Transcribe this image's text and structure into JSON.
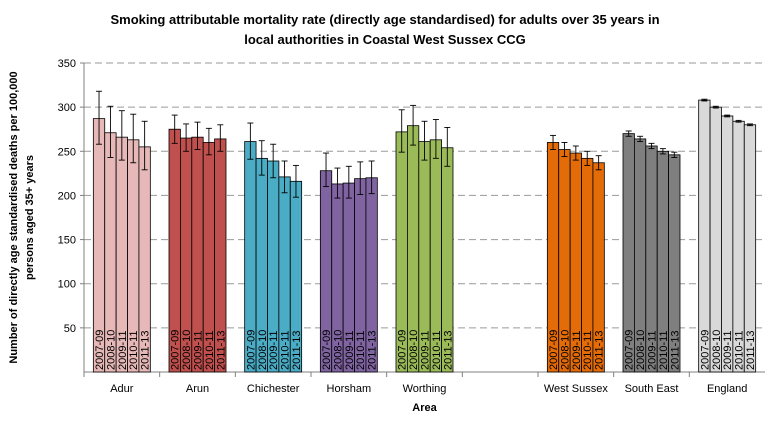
{
  "chart_data": {
    "type": "bar",
    "title": "Smoking attributable mortality rate (directly age standardised) for adults over 35 years in local authorities in Coastal West Sussex CCG",
    "title_lines": [
      "Smoking attributable mortality rate (directly age standardised) for adults over 35 years in",
      "local authorities in Coastal West Sussex CCG"
    ],
    "xlabel": "Area",
    "ylabel_lines": [
      "Number of directly age standardised deaths per 100,000",
      "persons aged 35+ years"
    ],
    "ylim": [
      0,
      350
    ],
    "yticks": [
      50,
      100,
      150,
      200,
      250,
      300,
      350
    ],
    "grid": true,
    "periods": [
      "2007-09",
      "2008-10",
      "2009-11",
      "2010-11",
      "2011-13"
    ],
    "groups": [
      {
        "name": "Adur",
        "color": "#e6b9b8",
        "values": [
          287,
          271,
          266,
          263,
          255
        ],
        "lower": [
          258,
          243,
          240,
          237,
          229
        ],
        "upper": [
          318,
          301,
          296,
          292,
          284
        ]
      },
      {
        "name": "Arun",
        "color": "#c0504d",
        "values": [
          275,
          265,
          266,
          260,
          264
        ],
        "lower": [
          259,
          250,
          252,
          246,
          250
        ],
        "upper": [
          291,
          281,
          283,
          276,
          280
        ]
      },
      {
        "name": "Chichester",
        "color": "#4bacc6",
        "values": [
          261,
          242,
          239,
          221,
          216
        ],
        "lower": [
          241,
          223,
          220,
          203,
          198
        ],
        "upper": [
          282,
          262,
          258,
          239,
          234
        ]
      },
      {
        "name": "Horsham",
        "color": "#8064a2",
        "values": [
          228,
          213,
          214,
          219,
          220
        ],
        "lower": [
          210,
          197,
          197,
          201,
          202
        ],
        "upper": [
          248,
          231,
          233,
          238,
          239
        ]
      },
      {
        "name": "Worthing",
        "color": "#9bbb59",
        "values": [
          272,
          279,
          261,
          263,
          254
        ],
        "lower": [
          249,
          257,
          240,
          242,
          233
        ],
        "upper": [
          297,
          302,
          284,
          286,
          277
        ]
      },
      {
        "name": "",
        "color": "#ffffff",
        "values": [],
        "lower": [],
        "upper": []
      },
      {
        "name": "West Sussex",
        "color": "#e36c09",
        "values": [
          260,
          252,
          248,
          242,
          237
        ],
        "lower": [
          252,
          244,
          240,
          234,
          229
        ],
        "upper": [
          268,
          260,
          256,
          250,
          245
        ]
      },
      {
        "name": "South East",
        "color": "#7f7f7f",
        "values": [
          270,
          264,
          256,
          250,
          246
        ],
        "lower": [
          267,
          261,
          253,
          247,
          243
        ],
        "upper": [
          273,
          267,
          259,
          253,
          249
        ]
      },
      {
        "name": "England",
        "color": "#d9d9d9",
        "values": [
          308,
          300,
          290,
          284,
          280
        ],
        "lower": [
          307,
          299,
          289,
          283,
          279
        ],
        "upper": [
          309,
          301,
          291,
          285,
          281
        ]
      }
    ]
  }
}
